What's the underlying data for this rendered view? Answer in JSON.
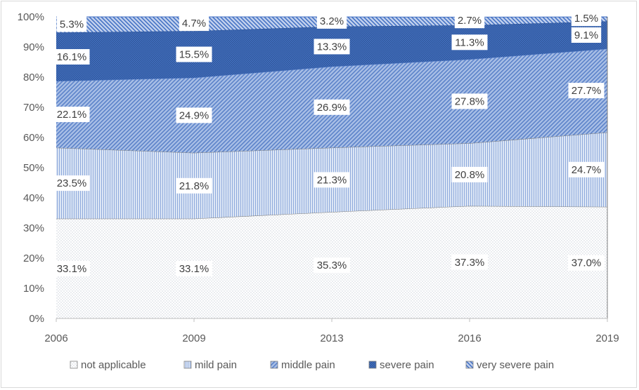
{
  "chart_data": {
    "type": "area",
    "stacked": true,
    "normalized": true,
    "x": [
      "2006",
      "2009",
      "2013",
      "2016",
      "2019"
    ],
    "ylim": [
      0,
      100
    ],
    "yticks": [
      "0%",
      "10%",
      "20%",
      "30%",
      "40%",
      "50%",
      "60%",
      "70%",
      "80%",
      "90%",
      "100%"
    ],
    "ytick_values": [
      0,
      10,
      20,
      30,
      40,
      50,
      60,
      70,
      80,
      90,
      100
    ],
    "grid": false,
    "legend_position": "bottom",
    "series": [
      {
        "name": "not applicable",
        "values": [
          33.1,
          33.1,
          35.3,
          37.3,
          37.0
        ],
        "labels": [
          "33.1%",
          "33.1%",
          "35.3%",
          "37.3%",
          "37.0%"
        ],
        "color": "#d9d9d9"
      },
      {
        "name": "mild pain",
        "values": [
          23.5,
          21.8,
          21.3,
          20.8,
          24.7
        ],
        "labels": [
          "23.5%",
          "21.8%",
          "21.3%",
          "20.8%",
          "24.7%"
        ],
        "color": "#b4c7e7"
      },
      {
        "name": "middle pain",
        "values": [
          22.1,
          24.9,
          26.9,
          27.8,
          27.7
        ],
        "labels": [
          "22.1%",
          "24.9%",
          "26.9%",
          "27.8%",
          "27.7%"
        ],
        "color": "#8faadc"
      },
      {
        "name": "severe pain",
        "values": [
          16.1,
          15.5,
          13.3,
          11.3,
          9.1
        ],
        "labels": [
          "16.1%",
          "15.5%",
          "13.3%",
          "11.3%",
          "9.1%"
        ],
        "color": "#4472c4"
      },
      {
        "name": "very severe pain",
        "values": [
          5.3,
          4.7,
          3.2,
          2.7,
          1.5
        ],
        "labels": [
          "5.3%",
          "4.7%",
          "3.2%",
          "2.7%",
          "1.5%"
        ],
        "color": "#8faadc"
      }
    ]
  }
}
